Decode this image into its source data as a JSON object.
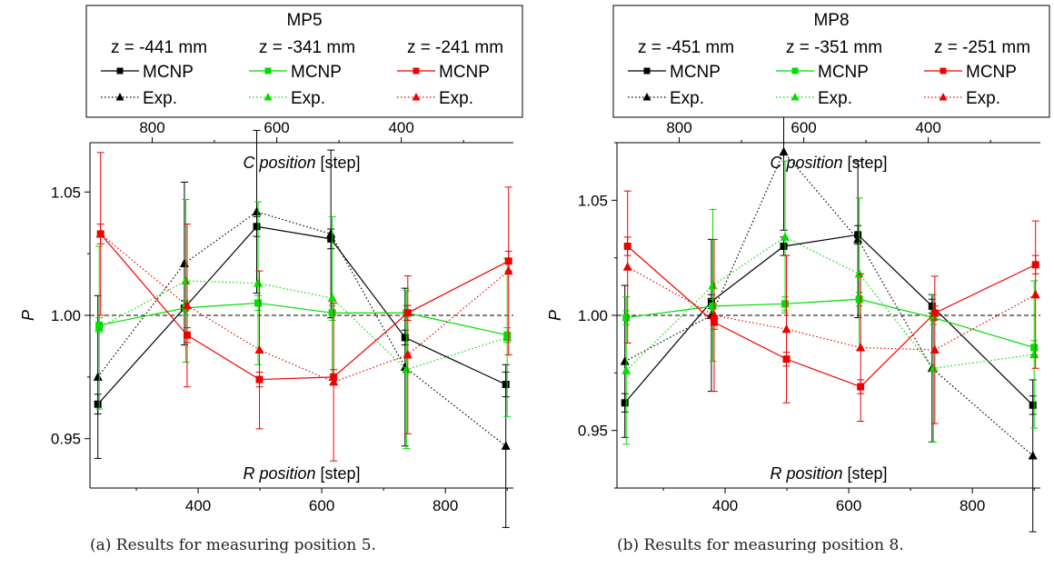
{
  "chart_data": [
    {
      "type": "line",
      "panel_id": "a",
      "legend_title": "MP5",
      "caption": "(a) Results for measuring position 5.",
      "ylabel": "P",
      "bottom_xlabel": "R position [step]",
      "top_xlabel": "C position [step]",
      "xlim": [
        225,
        910
      ],
      "ylim": [
        0.93,
        1.07
      ],
      "top_xlim": [
        900,
        220
      ],
      "yticks": [
        0.95,
        1.0,
        1.05
      ],
      "ytick_labels": [
        "0.95",
        "1.00",
        "1.05"
      ],
      "xticks": [
        400,
        600,
        800
      ],
      "xtick_labels": [
        "400",
        "600",
        "800"
      ],
      "top_xticks": [
        800,
        600,
        400
      ],
      "top_xtick_labels": [
        "800",
        "600",
        "400"
      ],
      "reference_line": 1.0,
      "x": [
        240,
        380,
        497,
        617,
        737,
        900
      ],
      "groups": [
        {
          "label": "z = -441 mm",
          "color": "#000000",
          "mcnp": {
            "name": "MCNP",
            "values": [
              0.964,
              1.003,
              1.036,
              1.031,
              0.991,
              0.972
            ],
            "errors": [
              0.004,
              0.003,
              0.004,
              0.004,
              0.003,
              0.005
            ]
          },
          "exp": {
            "name": "Exp.",
            "values": [
              0.975,
              1.021,
              1.042,
              1.033,
              0.979,
              0.947
            ],
            "errors": [
              0.033,
              0.033,
              0.033,
              0.034,
              0.032,
              0.033
            ]
          }
        },
        {
          "label": "z = -341 mm",
          "color": "#00dd00",
          "mcnp": {
            "name": "MCNP",
            "values": [
              0.996,
              1.003,
              1.005,
              1.001,
              1.001,
              0.992
            ],
            "errors": [
              0.003,
              0.003,
              0.003,
              0.003,
              0.003,
              0.003
            ]
          },
          "exp": {
            "name": "Exp.",
            "values": [
              0.995,
              1.014,
              1.013,
              1.007,
              0.978,
              0.991
            ],
            "errors": [
              0.033,
              0.033,
              0.033,
              0.033,
              0.032,
              0.032
            ]
          }
        },
        {
          "label": "z = -241 mm",
          "color": "#ee0000",
          "mcnp": {
            "name": "MCNP",
            "values": [
              1.033,
              0.992,
              0.974,
              0.975,
              1.001,
              1.022
            ],
            "errors": [
              0.004,
              0.003,
              0.003,
              0.003,
              0.003,
              0.004
            ]
          },
          "exp": {
            "name": "Exp.",
            "values": [
              1.033,
              1.004,
              0.986,
              0.973,
              0.984,
              1.018
            ],
            "errors": [
              0.033,
              0.033,
              0.032,
              0.032,
              0.032,
              0.034
            ]
          }
        }
      ]
    },
    {
      "type": "line",
      "panel_id": "b",
      "legend_title": "MP8",
      "caption": "(b) Results for measuring position 8.",
      "ylabel": "P",
      "bottom_xlabel": "R position [step]",
      "top_xlabel": "C position [step]",
      "xlim": [
        225,
        910
      ],
      "ylim": [
        0.925,
        1.075
      ],
      "top_xlim": [
        900,
        220
      ],
      "yticks": [
        0.95,
        1.0,
        1.05
      ],
      "ytick_labels": [
        "0.95",
        "1.00",
        "1.05"
      ],
      "xticks": [
        400,
        600,
        800
      ],
      "xtick_labels": [
        "400",
        "600",
        "800"
      ],
      "top_xticks": [
        800,
        600,
        400
      ],
      "top_xtick_labels": [
        "800",
        "600",
        "400"
      ],
      "reference_line": 1.0,
      "x": [
        240,
        380,
        497,
        617,
        737,
        900
      ],
      "groups": [
        {
          "label": "z = -451 mm",
          "color": "#000000",
          "mcnp": {
            "name": "MCNP",
            "values": [
              0.962,
              1.006,
              1.03,
              1.035,
              1.004,
              0.961
            ],
            "errors": [
              0.004,
              0.003,
              0.004,
              0.004,
              0.003,
              0.004
            ]
          },
          "exp": {
            "name": "Exp.",
            "values": [
              0.98,
              1.0,
              1.071,
              1.033,
              0.977,
              0.939
            ],
            "errors": [
              0.033,
              0.033,
              0.034,
              0.034,
              0.032,
              0.033
            ]
          }
        },
        {
          "label": "z = -351 mm",
          "color": "#00dd00",
          "mcnp": {
            "name": "MCNP",
            "values": [
              0.999,
              1.004,
              1.005,
              1.007,
              0.999,
              0.986
            ],
            "errors": [
              0.003,
              0.003,
              0.003,
              0.003,
              0.003,
              0.003
            ]
          },
          "exp": {
            "name": "Exp.",
            "values": [
              0.976,
              1.013,
              1.034,
              1.018,
              0.977,
              0.983
            ],
            "errors": [
              0.032,
              0.033,
              0.033,
              0.033,
              0.032,
              0.032
            ]
          }
        },
        {
          "label": "z = -251 mm",
          "color": "#ee0000",
          "mcnp": {
            "name": "MCNP",
            "values": [
              1.03,
              0.997,
              0.981,
              0.969,
              1.001,
              1.022
            ],
            "errors": [
              0.004,
              0.003,
              0.003,
              0.003,
              0.003,
              0.004
            ]
          },
          "exp": {
            "name": "Exp.",
            "values": [
              1.021,
              1.0,
              0.994,
              0.986,
              0.985,
              1.009
            ],
            "errors": [
              0.033,
              0.033,
              0.032,
              0.032,
              0.032,
              0.032
            ]
          }
        }
      ]
    }
  ]
}
